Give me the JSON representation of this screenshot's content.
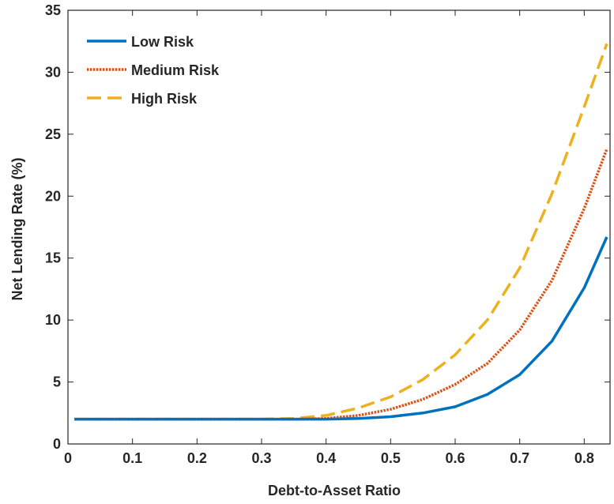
{
  "chart_data": {
    "type": "line",
    "title": "",
    "xlabel": "Debt-to-Asset Ratio",
    "ylabel": "Net Lending Rate (%)",
    "xlim": [
      0,
      0.84
    ],
    "ylim": [
      0,
      35
    ],
    "xticks": [
      "0",
      "0.1",
      "0.2",
      "0.3",
      "0.4",
      "0.5",
      "0.6",
      "0.7",
      "0.8"
    ],
    "yticks": [
      "0",
      "5",
      "10",
      "15",
      "20",
      "25",
      "30",
      "35"
    ],
    "grid": false,
    "legend_position": "top-left",
    "x": [
      0.01,
      0.05,
      0.1,
      0.15,
      0.2,
      0.25,
      0.3,
      0.35,
      0.4,
      0.45,
      0.5,
      0.55,
      0.6,
      0.65,
      0.7,
      0.75,
      0.8,
      0.835
    ],
    "series": [
      {
        "name": "Low Risk",
        "color": "#0072BD",
        "style": "solid",
        "values": [
          2.0,
          2.0,
          2.0,
          2.0,
          2.0,
          2.0,
          2.0,
          2.0,
          2.0,
          2.05,
          2.2,
          2.5,
          3.0,
          4.0,
          5.6,
          8.3,
          12.6,
          16.7
        ]
      },
      {
        "name": "Medium Risk",
        "color": "#D95319",
        "style": "dotted",
        "values": [
          2.0,
          2.0,
          2.0,
          2.0,
          2.0,
          2.0,
          2.0,
          2.0,
          2.05,
          2.3,
          2.8,
          3.6,
          4.8,
          6.5,
          9.2,
          13.2,
          19.0,
          23.8
        ]
      },
      {
        "name": "High Risk",
        "color": "#EDB120",
        "style": "dashed",
        "values": [
          2.0,
          2.0,
          2.0,
          2.0,
          2.0,
          2.0,
          2.0,
          2.05,
          2.3,
          2.9,
          3.8,
          5.2,
          7.2,
          10.0,
          14.2,
          20.2,
          27.2,
          32.3
        ]
      }
    ]
  }
}
